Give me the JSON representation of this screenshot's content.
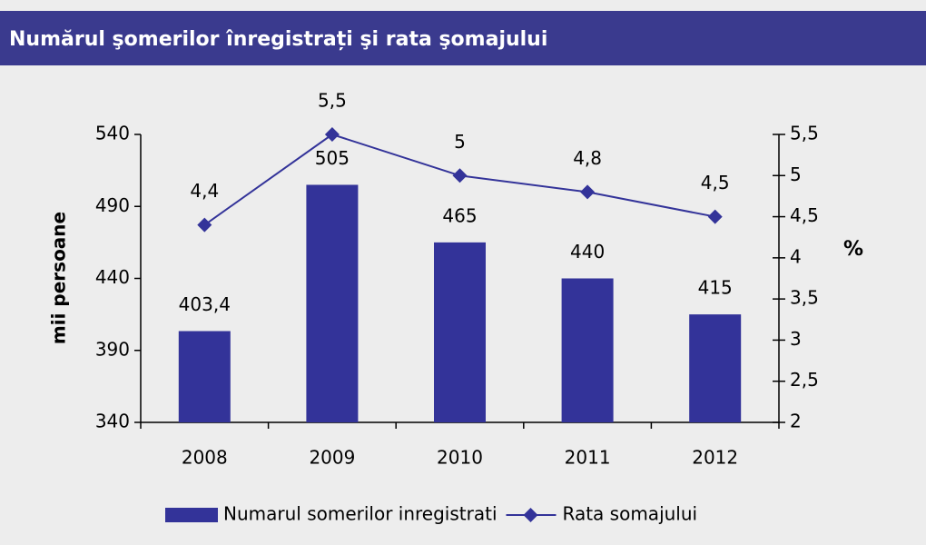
{
  "chart_data": {
    "type": "bar",
    "title": "Numărul şomerilor înregistrați şi rata şomajului",
    "ylabel": "mii persoane",
    "y2label": "%",
    "categories": [
      "2008",
      "2009",
      "2010",
      "2011",
      "2012"
    ],
    "series": [
      {
        "name": "Numarul somerilor inregistrati",
        "type": "bar",
        "color": "#333399",
        "values": [
          403.4,
          505,
          465,
          440,
          415
        ],
        "value_labels": [
          "403,4",
          "505",
          "465",
          "440",
          "415"
        ]
      },
      {
        "name": "Rata somajului",
        "type": "line",
        "axis": "y2",
        "color": "#333399",
        "values": [
          4.4,
          5.5,
          5,
          4.8,
          4.5
        ],
        "value_labels": [
          "4,4",
          "5,5",
          "5",
          "4,8",
          "4,5"
        ]
      }
    ],
    "ylim": [
      340,
      540
    ],
    "yticks": [
      340,
      390,
      440,
      490,
      540
    ],
    "y2lim": [
      2,
      5.5
    ],
    "y2ticks": [
      2,
      {
        "value": 2.5,
        "label": "2,5"
      },
      3,
      {
        "value": 3.5,
        "label": "3,5"
      },
      4,
      {
        "value": 4.5,
        "label": "4,5"
      },
      5,
      {
        "value": 5.5,
        "label": "5,5"
      }
    ],
    "grid": false,
    "legend": "bottom"
  }
}
